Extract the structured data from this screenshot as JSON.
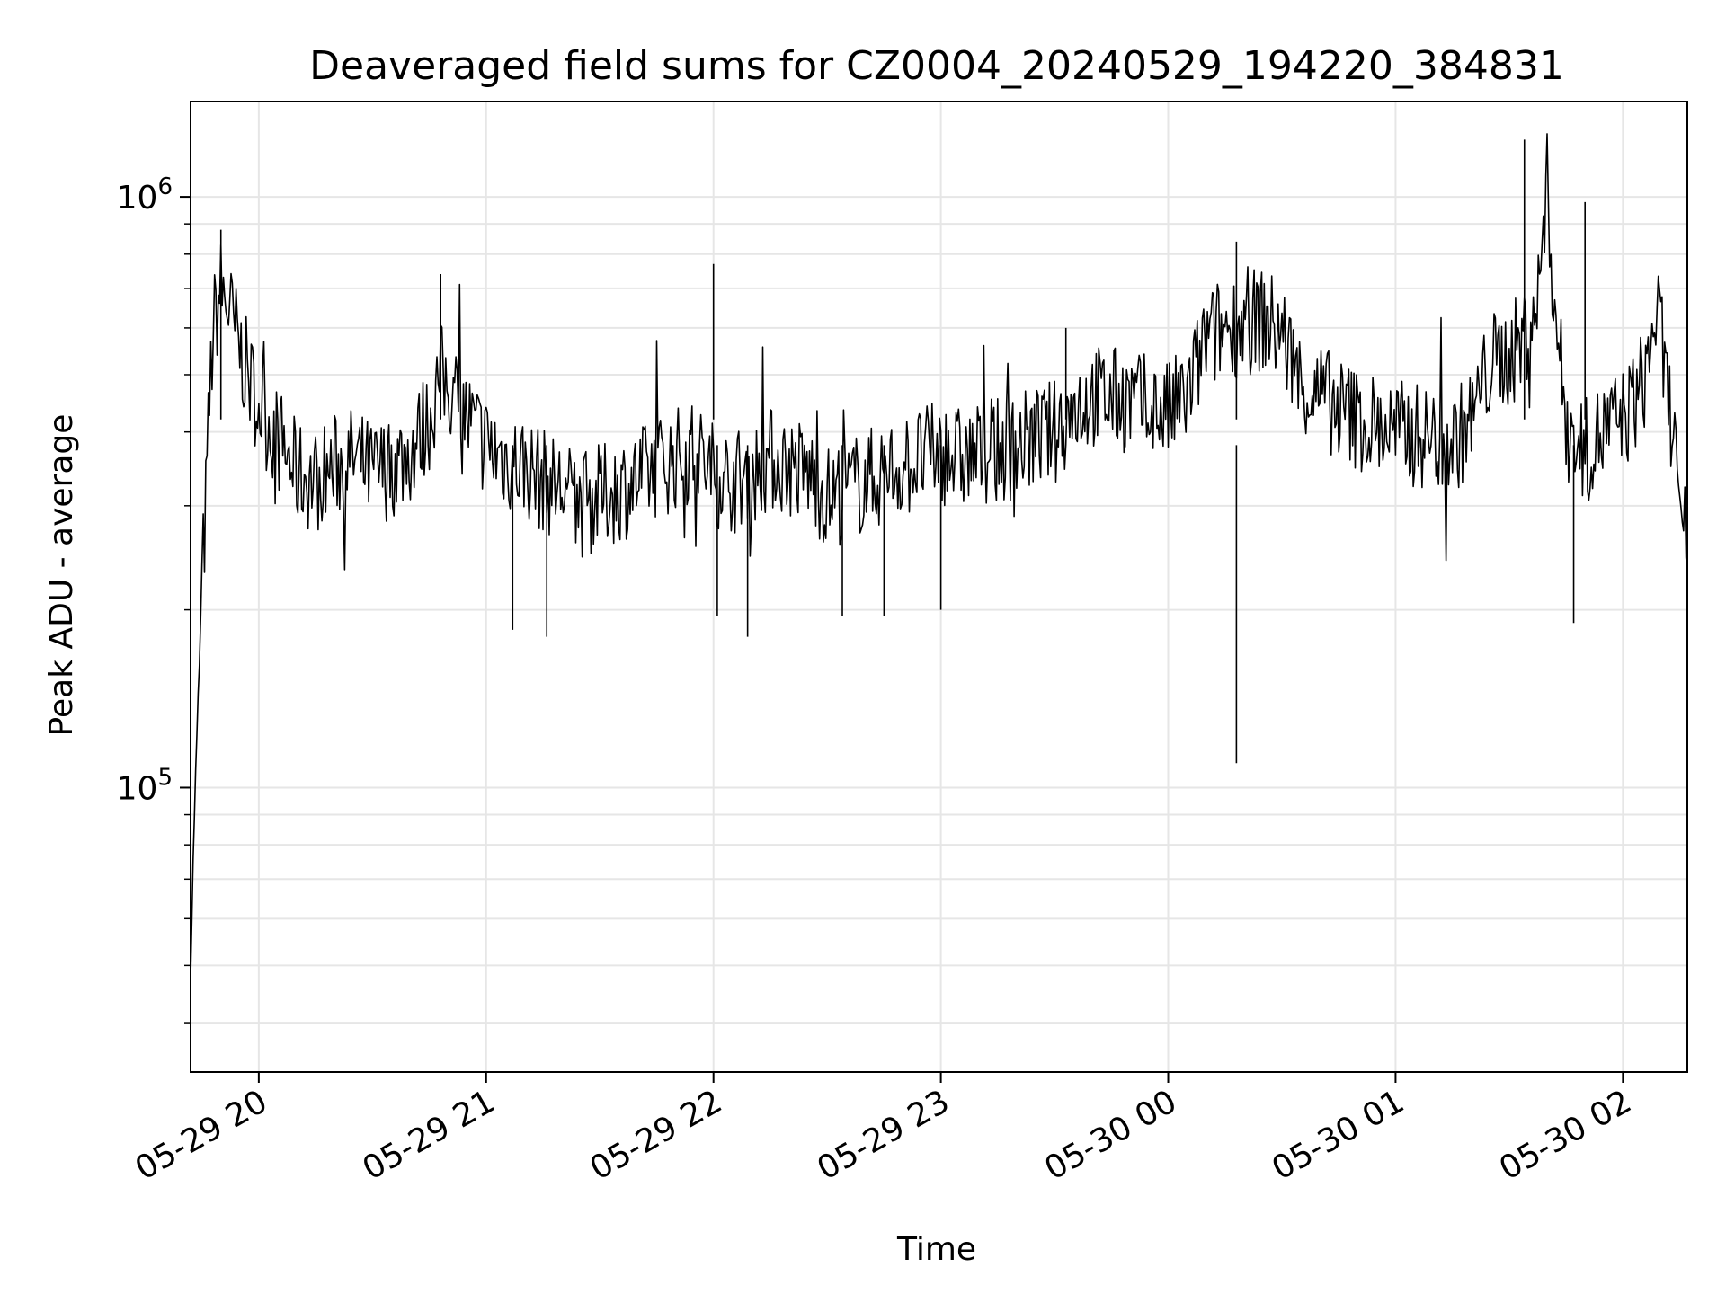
{
  "chart_data": {
    "type": "line",
    "title": "Deaveraged field sums for CZ0004_20240529_194220_384831",
    "xlabel": "Time",
    "ylabel": "Peak ADU - average",
    "yscale": "log",
    "ylim": [
      33000,
      1450000
    ],
    "xlim": [
      "2024-05-29 19:42",
      "2024-05-30 02:17"
    ],
    "grid": true,
    "x_ticks": [
      {
        "value": "2024-05-29 20:00",
        "label": "05-29 20"
      },
      {
        "value": "2024-05-29 21:00",
        "label": "05-29 21"
      },
      {
        "value": "2024-05-29 22:00",
        "label": "05-29 22"
      },
      {
        "value": "2024-05-29 23:00",
        "label": "05-29 23"
      },
      {
        "value": "2024-05-30 00:00",
        "label": "05-30 00"
      },
      {
        "value": "2024-05-30 01:00",
        "label": "05-30 01"
      },
      {
        "value": "2024-05-30 02:00",
        "label": "05-30 02"
      }
    ],
    "y_ticks": [
      {
        "value": 100000,
        "base": "10",
        "exp": "5"
      },
      {
        "value": 1000000,
        "base": "10",
        "exp": "6"
      }
    ],
    "series": [
      {
        "color": "#000000",
        "x": [
          "2024-05-29 19:42",
          "2024-05-29 19:43",
          "2024-05-29 19:44",
          "2024-05-29 19:45",
          "2024-05-29 19:46",
          "2024-05-29 19:47",
          "2024-05-29 19:48",
          "2024-05-29 19:50",
          "2024-05-29 19:52",
          "2024-05-29 19:55",
          "2024-05-29 19:58",
          "2024-05-29 20:02",
          "2024-05-29 20:06",
          "2024-05-29 20:10",
          "2024-05-29 20:15",
          "2024-05-29 20:20",
          "2024-05-29 20:25",
          "2024-05-29 20:30",
          "2024-05-29 20:35",
          "2024-05-29 20:40",
          "2024-05-29 20:45",
          "2024-05-29 20:48",
          "2024-05-29 20:52",
          "2024-05-29 20:56",
          "2024-05-29 21:00",
          "2024-05-29 21:05",
          "2024-05-29 21:10",
          "2024-05-29 21:15",
          "2024-05-29 21:20",
          "2024-05-29 21:25",
          "2024-05-29 21:30",
          "2024-05-29 21:35",
          "2024-05-29 21:40",
          "2024-05-29 21:45",
          "2024-05-29 21:50",
          "2024-05-29 21:55",
          "2024-05-29 22:00",
          "2024-05-29 22:05",
          "2024-05-29 22:10",
          "2024-05-29 22:15",
          "2024-05-29 22:20",
          "2024-05-29 22:25",
          "2024-05-29 22:30",
          "2024-05-29 22:35",
          "2024-05-29 22:40",
          "2024-05-29 22:45",
          "2024-05-29 22:50",
          "2024-05-29 22:55",
          "2024-05-29 23:00",
          "2024-05-29 23:05",
          "2024-05-29 23:10",
          "2024-05-29 23:15",
          "2024-05-29 23:20",
          "2024-05-29 23:25",
          "2024-05-29 23:30",
          "2024-05-29 23:35",
          "2024-05-29 23:40",
          "2024-05-29 23:45",
          "2024-05-29 23:50",
          "2024-05-29 23:55",
          "2024-05-30 00:00",
          "2024-05-30 00:05",
          "2024-05-30 00:10",
          "2024-05-30 00:15",
          "2024-05-30 00:20",
          "2024-05-30 00:25",
          "2024-05-30 00:30",
          "2024-05-30 00:35",
          "2024-05-30 00:40",
          "2024-05-30 00:45",
          "2024-05-30 00:50",
          "2024-05-30 00:55",
          "2024-05-30 01:00",
          "2024-05-30 01:05",
          "2024-05-30 01:10",
          "2024-05-30 01:15",
          "2024-05-30 01:20",
          "2024-05-30 01:25",
          "2024-05-30 01:30",
          "2024-05-30 01:33",
          "2024-05-30 01:36",
          "2024-05-30 01:38",
          "2024-05-30 01:40",
          "2024-05-30 01:42",
          "2024-05-30 01:45",
          "2024-05-30 01:50",
          "2024-05-30 01:55",
          "2024-05-30 02:00",
          "2024-05-30 02:03",
          "2024-05-30 02:06",
          "2024-05-30 02:09",
          "2024-05-30 02:12",
          "2024-05-30 02:14",
          "2024-05-30 02:15",
          "2024-05-30 02:16",
          "2024-05-30 02:17"
        ],
        "y": [
          50000,
          90000,
          140000,
          220000,
          300000,
          450000,
          600000,
          700000,
          650000,
          550000,
          480000,
          420000,
          380000,
          340000,
          330000,
          350000,
          360000,
          340000,
          350000,
          370000,
          420000,
          500000,
          460000,
          410000,
          380000,
          360000,
          350000,
          330000,
          320000,
          300000,
          310000,
          320000,
          330000,
          350000,
          360000,
          370000,
          340000,
          330000,
          340000,
          360000,
          350000,
          340000,
          310000,
          320000,
          330000,
          340000,
          350000,
          360000,
          370000,
          360000,
          365000,
          370000,
          380000,
          390000,
          400000,
          440000,
          460000,
          455000,
          450000,
          440000,
          430000,
          460000,
          570000,
          600000,
          610000,
          620000,
          590000,
          480000,
          460000,
          440000,
          420000,
          410000,
          400000,
          395000,
          390000,
          380000,
          420000,
          520000,
          540000,
          560000,
          620000,
          700000,
          1050000,
          650000,
          420000,
          370000,
          400000,
          420000,
          450000,
          500000,
          650000,
          450000,
          390000,
          300000,
          260000,
          230000
        ]
      }
    ],
    "spikes": [
      {
        "x": "2024-05-29 19:50",
        "y": 880000
      },
      {
        "x": "2024-05-29 20:48",
        "y": 740000
      },
      {
        "x": "2024-05-29 21:07",
        "y": 185000
      },
      {
        "x": "2024-05-29 21:16",
        "y": 180000
      },
      {
        "x": "2024-05-29 22:00",
        "y": 770000
      },
      {
        "x": "2024-05-29 22:01",
        "y": 195000
      },
      {
        "x": "2024-05-29 22:09",
        "y": 180000
      },
      {
        "x": "2024-05-29 22:34",
        "y": 195000
      },
      {
        "x": "2024-05-29 22:45",
        "y": 195000
      },
      {
        "x": "2024-05-29 23:00",
        "y": 200000
      },
      {
        "x": "2024-05-29 23:33",
        "y": 600000
      },
      {
        "x": "2024-05-30 00:18",
        "y": 840000
      },
      {
        "x": "2024-05-30 00:18",
        "y": 110000
      },
      {
        "x": "2024-05-30 01:34",
        "y": 1250000
      },
      {
        "x": "2024-05-30 01:47",
        "y": 190000
      },
      {
        "x": "2024-05-30 01:50",
        "y": 980000
      }
    ]
  }
}
